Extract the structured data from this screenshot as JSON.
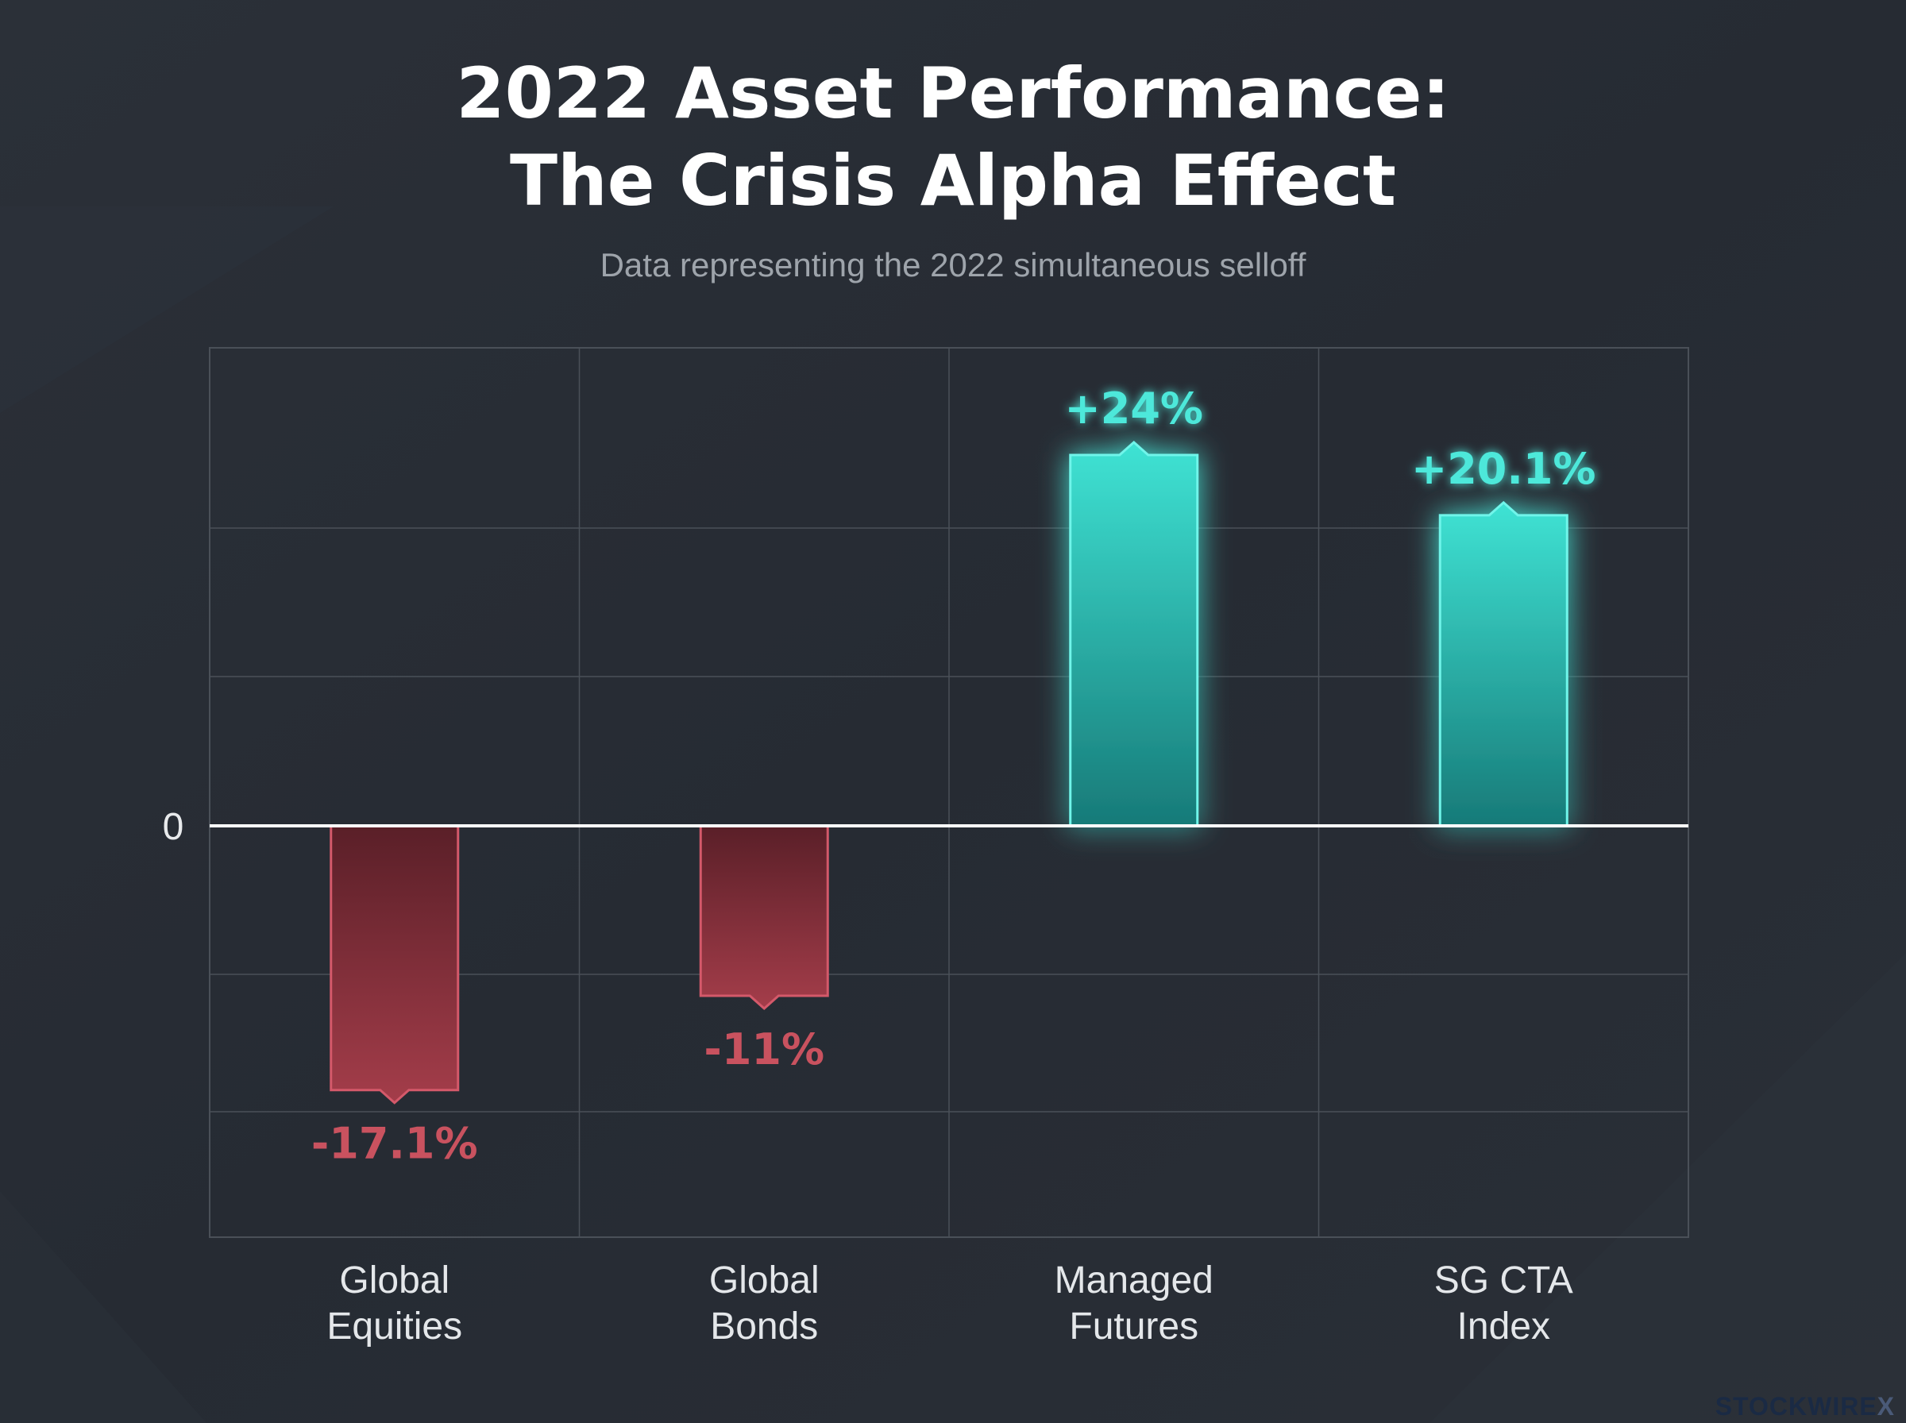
{
  "title_lines": [
    "2022 Asset Performance:",
    "The Crisis Alpha Effect"
  ],
  "subtitle": "Data representing the 2022 simultaneous selloff",
  "brand": {
    "name": "STOCKWIRE",
    "mark": "X"
  },
  "colors": {
    "background": "#272c34",
    "positive": "#3ee6d6",
    "positive_label": "#4ee8da",
    "negative": "#b8414f",
    "negative_label": "#c9525f",
    "grid": "#4a5058",
    "zero_line": "#ffffff"
  },
  "chart_data": {
    "type": "bar",
    "categories": [
      "Global Equities",
      "Global Bonds",
      "Managed Futures",
      "SG CTA Index"
    ],
    "category_lines": [
      [
        "Global",
        "Equities"
      ],
      [
        "Global",
        "Bonds"
      ],
      [
        "Managed",
        "Futures"
      ],
      [
        "SG CTA",
        "Index"
      ]
    ],
    "values": [
      -17.1,
      -11,
      24,
      20.1
    ],
    "value_labels": [
      "-17.1%",
      "-11%",
      "+24%",
      "+20.1%"
    ],
    "zero_label": "0",
    "ylim": [
      -22,
      31
    ],
    "grid": true,
    "xlabel": "",
    "ylabel": ""
  }
}
